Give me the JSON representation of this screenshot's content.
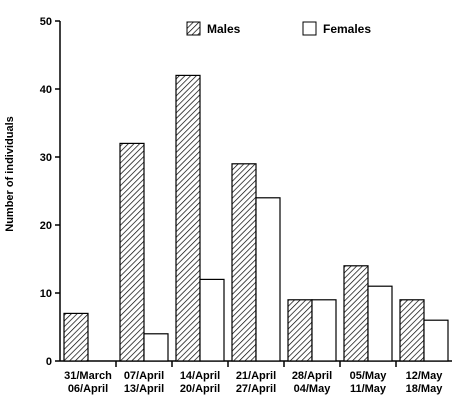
{
  "chart_data": {
    "type": "bar",
    "title": "",
    "xlabel": "",
    "ylabel": "Number of individuals",
    "ylim": [
      0,
      50
    ],
    "yticks": [
      0,
      10,
      20,
      30,
      40,
      50
    ],
    "grid": false,
    "legend_position": "top",
    "categories": [
      [
        "31/March",
        "06/April"
      ],
      [
        "07/April",
        "13/April"
      ],
      [
        "14/April",
        "20/April"
      ],
      [
        "21/April",
        "27/April"
      ],
      [
        "28/April",
        "04/May"
      ],
      [
        "05/May",
        "11/May"
      ],
      [
        "12/May",
        "18/May"
      ]
    ],
    "series": [
      {
        "name": "Males",
        "fill": "hatched",
        "values": [
          7,
          32,
          42,
          29,
          9,
          14,
          9
        ]
      },
      {
        "name": "Females",
        "fill": "white",
        "values": [
          0,
          4,
          12,
          24,
          9,
          11,
          6
        ]
      }
    ]
  }
}
